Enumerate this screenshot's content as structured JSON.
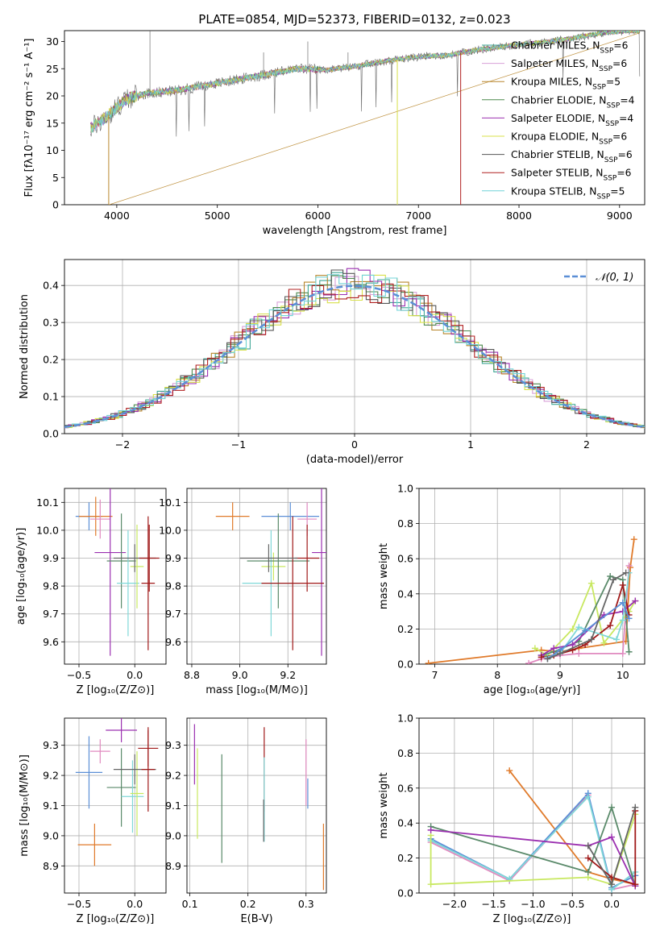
{
  "figure_title": "PLATE=0854, MJD=52373, FIBERID=0132, z=0.023",
  "colors": {
    "chabrier_miles": "#3fa796",
    "salpeter_miles": "#d8a0d8",
    "kroupa_miles": "#b8862b",
    "chabrier_elodie": "#4f8a4f",
    "salpeter_elodie": "#9b30b0",
    "kroupa_elodie": "#d8e04a",
    "chabrier_stelib": "#555555",
    "salpeter_stelib": "#b02020",
    "kroupa_stelib": "#70d4d8",
    "blue": "#5b8fd6",
    "orange": "#e07a2a",
    "pink": "#e08abf",
    "lime": "#c8e860",
    "green": "#5a8a6a",
    "purple": "#9b30b0",
    "darkred": "#a01a1a",
    "cyan": "#80d8d8",
    "gray": "#666666",
    "normal_curve": "#5b8fd6",
    "grid": "#b0b0b0"
  },
  "chart_data": [
    {
      "id": "spectrum",
      "type": "line",
      "title": "PLATE=0854, MJD=52373, FIBERID=0132, z=0.023",
      "xlabel": "wavelength [Angstrom, rest frame]",
      "ylabel": "Flux [fλ10⁻¹⁷ erg cm⁻² s⁻¹ A⁻¹]",
      "xlim": [
        3480,
        9250
      ],
      "ylim": [
        0,
        32
      ],
      "xticks": [
        4000,
        5000,
        6000,
        7000,
        8000,
        9000
      ],
      "yticks": [
        0,
        5,
        10,
        15,
        20,
        25,
        30
      ],
      "grid": false,
      "legend_position": "top-right",
      "continuum": [
        [
          3740,
          14
        ],
        [
          3950,
          17
        ],
        [
          4100,
          19.5
        ],
        [
          4300,
          20.5
        ],
        [
          4600,
          21
        ],
        [
          4900,
          22
        ],
        [
          5200,
          23
        ],
        [
          5500,
          24
        ],
        [
          5800,
          25
        ],
        [
          6100,
          24.8
        ],
        [
          6400,
          25.5
        ],
        [
          6700,
          26.5
        ],
        [
          7000,
          27.2
        ],
        [
          7300,
          27.5
        ],
        [
          7600,
          28.5
        ],
        [
          7900,
          29.2
        ],
        [
          8200,
          29.8
        ],
        [
          8500,
          30.5
        ],
        [
          8800,
          31.5
        ],
        [
          9100,
          32
        ]
      ],
      "legend": [
        {
          "label": "Chabrier MILES, N",
          "sub": "SSP",
          "eq": "=6",
          "ckey": "chabrier_miles"
        },
        {
          "label": "Salpeter MILES, N",
          "sub": "SSP",
          "eq": "=6",
          "ckey": "salpeter_miles"
        },
        {
          "label": "Kroupa MILES, N",
          "sub": "SSP",
          "eq": "=5",
          "ckey": "kroupa_miles"
        },
        {
          "label": "Chabrier ELODIE, N",
          "sub": "SSP",
          "eq": "=4",
          "ckey": "chabrier_elodie"
        },
        {
          "label": "Salpeter ELODIE, N",
          "sub": "SSP",
          "eq": "=4",
          "ckey": "salpeter_elodie"
        },
        {
          "label": "Kroupa ELODIE, N",
          "sub": "SSP",
          "eq": "=6",
          "ckey": "kroupa_elodie"
        },
        {
          "label": "Chabrier STELIB, N",
          "sub": "SSP",
          "eq": "=6",
          "ckey": "chabrier_stelib"
        },
        {
          "label": "Salpeter STELIB, N",
          "sub": "SSP",
          "eq": "=6",
          "ckey": "salpeter_stelib"
        },
        {
          "label": "Kroupa STELIB, N",
          "sub": "SSP",
          "eq": "=5",
          "ckey": "kroupa_stelib"
        }
      ]
    },
    {
      "id": "residuals",
      "type": "histogram",
      "xlabel": "(data-model)/error",
      "ylabel": "Normed distribution",
      "xlim": [
        -2.5,
        2.5
      ],
      "ylim": [
        0,
        0.47
      ],
      "xticks": [
        -2,
        -1,
        0,
        1,
        2
      ],
      "yticks": [
        0.0,
        0.1,
        0.2,
        0.3,
        0.4
      ],
      "grid": true,
      "legend_position": "top-right",
      "legend_label": "𝒩(0, 1)",
      "bin_width": 0.1,
      "normal": {
        "mu": 0,
        "sigma": 1
      }
    },
    {
      "id": "z_age",
      "type": "errorbar",
      "xlabel": "Z [log₁₀(Z/Z⊙)]",
      "ylabel": "age  [log₁₀(age/yr)]",
      "xlim": [
        -0.63,
        0.28
      ],
      "ylim": [
        9.52,
        10.15
      ],
      "xticks": [
        -0.5,
        0.0
      ],
      "yticks": [
        9.6,
        9.7,
        9.8,
        9.9,
        10.0,
        10.1
      ],
      "grid": true,
      "points": [
        {
          "x": -0.41,
          "y": 10.05,
          "xerr": 0.12,
          "yerr": 0.05,
          "ckey": "blue"
        },
        {
          "x": -0.35,
          "y": 10.05,
          "xerr": 0.15,
          "yerr": 0.07,
          "ckey": "orange"
        },
        {
          "x": -0.31,
          "y": 10.04,
          "xerr": 0.09,
          "yerr": 0.07,
          "ckey": "pink"
        },
        {
          "x": -0.22,
          "y": 9.92,
          "xerr": 0.14,
          "yerr": 0.37,
          "ckey": "purple"
        },
        {
          "x": -0.12,
          "y": 9.89,
          "xerr": 0.13,
          "yerr": 0.17,
          "ckey": "green"
        },
        {
          "x": -0.06,
          "y": 9.81,
          "xerr": 0.1,
          "yerr": 0.19,
          "ckey": "cyan"
        },
        {
          "x": 0.02,
          "y": 9.87,
          "xerr": 0.06,
          "yerr": 0.15,
          "ckey": "lime"
        },
        {
          "x": 0.0,
          "y": 9.9,
          "xerr": 0.19,
          "yerr": 0.05,
          "ckey": "gray"
        },
        {
          "x": 0.12,
          "y": 9.81,
          "xerr": 0.06,
          "yerr": 0.24,
          "ckey": "darkred"
        },
        {
          "x": 0.13,
          "y": 9.9,
          "xerr": 0.09,
          "yerr": 0.12,
          "ckey": "darkred"
        }
      ]
    },
    {
      "id": "mass_age",
      "type": "errorbar",
      "xlabel": "mass [log₁₀(M/M⊙)]",
      "ylabel": "",
      "xlim": [
        8.78,
        9.36
      ],
      "ylim": [
        9.52,
        10.15
      ],
      "xticks": [
        8.8,
        9.0,
        9.2
      ],
      "yticks": [
        9.6,
        9.7,
        9.8,
        9.9,
        10.0,
        10.1
      ],
      "grid": true,
      "points": [
        {
          "x": 8.97,
          "y": 10.05,
          "xerr": 0.07,
          "yerr": 0.05,
          "ckey": "orange"
        },
        {
          "x": 9.21,
          "y": 10.05,
          "xerr": 0.12,
          "yerr": 0.05,
          "ckey": "blue"
        },
        {
          "x": 9.28,
          "y": 10.04,
          "xerr": 0.04,
          "yerr": 0.06,
          "ckey": "pink"
        },
        {
          "x": 9.14,
          "y": 9.87,
          "xerr": 0.05,
          "yerr": 0.05,
          "ckey": "lime"
        },
        {
          "x": 9.13,
          "y": 9.81,
          "xerr": 0.12,
          "yerr": 0.19,
          "ckey": "cyan"
        },
        {
          "x": 9.16,
          "y": 9.89,
          "xerr": 0.13,
          "yerr": 0.17,
          "ckey": "green"
        },
        {
          "x": 9.34,
          "y": 9.92,
          "xerr": 0.04,
          "yerr": 0.37,
          "ckey": "purple"
        },
        {
          "x": 9.22,
          "y": 9.81,
          "xerr": 0.13,
          "yerr": 0.24,
          "ckey": "darkred"
        },
        {
          "x": 9.28,
          "y": 9.9,
          "xerr": 0.05,
          "yerr": 0.12,
          "ckey": "darkred"
        },
        {
          "x": 9.12,
          "y": 9.9,
          "xerr": 0.12,
          "yerr": 0.05,
          "ckey": "gray"
        }
      ]
    },
    {
      "id": "weights_age",
      "type": "line",
      "xlabel": "age  [log₁₀(age/yr)]",
      "ylabel": "mass weight",
      "xlim": [
        6.75,
        10.35
      ],
      "ylim": [
        0,
        1
      ],
      "xticks": [
        7,
        8,
        9,
        10
      ],
      "yticks": [
        0.0,
        0.2,
        0.4,
        0.6,
        0.8,
        1.0
      ],
      "grid": true,
      "series": [
        {
          "ckey": "orange",
          "x": [
            6.9,
            8.7,
            9.0,
            9.3,
            10.05,
            10.12,
            10.18
          ],
          "y": [
            0.005,
            0.08,
            0.07,
            0.09,
            0.13,
            0.55,
            0.71
          ]
        },
        {
          "ckey": "pink",
          "x": [
            8.5,
            8.7,
            9.0,
            9.3,
            10.0,
            10.1
          ],
          "y": [
            0.005,
            0.03,
            0.05,
            0.06,
            0.06,
            0.56
          ]
        },
        {
          "ckey": "lime",
          "x": [
            8.6,
            8.8,
            9.2,
            9.5,
            9.7,
            10.1,
            10.2
          ],
          "y": [
            0.09,
            0.05,
            0.2,
            0.46,
            0.12,
            0.3,
            0.36
          ]
        },
        {
          "ckey": "green",
          "x": [
            8.7,
            8.9,
            9.3,
            9.8,
            10.0,
            10.1
          ],
          "y": [
            0.05,
            0.07,
            0.13,
            0.5,
            0.48,
            0.07
          ]
        },
        {
          "ckey": "purple",
          "x": [
            8.7,
            8.9,
            9.2,
            9.7,
            10.0,
            10.2
          ],
          "y": [
            0.05,
            0.09,
            0.11,
            0.28,
            0.3,
            0.36
          ]
        },
        {
          "ckey": "darkred",
          "x": [
            8.7,
            8.9,
            9.2,
            9.4,
            9.8,
            10.0,
            10.1
          ],
          "y": [
            0.04,
            0.05,
            0.08,
            0.11,
            0.22,
            0.45,
            0.28
          ]
        },
        {
          "ckey": "cyan",
          "x": [
            8.8,
            9.0,
            9.3,
            9.9,
            10.0,
            10.1
          ],
          "y": [
            0.04,
            0.06,
            0.21,
            0.14,
            0.25,
            0.52
          ]
        },
        {
          "ckey": "blue",
          "x": [
            8.8,
            9.0,
            9.4,
            10.0,
            10.1
          ],
          "y": [
            0.03,
            0.08,
            0.19,
            0.35,
            0.26
          ]
        },
        {
          "ckey": "gray",
          "x": [
            8.8,
            9.0,
            9.5,
            9.85,
            10.05
          ],
          "y": [
            0.03,
            0.06,
            0.14,
            0.48,
            0.52
          ]
        }
      ]
    },
    {
      "id": "z_mass",
      "type": "errorbar",
      "xlabel": "Z [log₁₀(Z/Z⊙)]",
      "ylabel": "mass [log₁₀(M/M⊙)]",
      "xlim": [
        -0.63,
        0.28
      ],
      "ylim": [
        8.81,
        9.39
      ],
      "xticks": [
        -0.5,
        0.0
      ],
      "yticks": [
        8.9,
        9.0,
        9.1,
        9.2,
        9.3
      ],
      "grid": true,
      "points": [
        {
          "x": -0.41,
          "y": 9.21,
          "xerr": 0.12,
          "yerr": 0.12,
          "ckey": "blue"
        },
        {
          "x": -0.36,
          "y": 8.97,
          "xerr": 0.15,
          "yerr": 0.07,
          "ckey": "orange"
        },
        {
          "x": -0.31,
          "y": 9.28,
          "xerr": 0.09,
          "yerr": 0.04,
          "ckey": "pink"
        },
        {
          "x": -0.12,
          "y": 9.35,
          "xerr": 0.14,
          "yerr": 0.04,
          "ckey": "purple"
        },
        {
          "x": -0.12,
          "y": 9.16,
          "xerr": 0.13,
          "yerr": 0.13,
          "ckey": "green"
        },
        {
          "x": -0.02,
          "y": 9.13,
          "xerr": 0.1,
          "yerr": 0.12,
          "ckey": "cyan"
        },
        {
          "x": 0.02,
          "y": 9.14,
          "xerr": 0.06,
          "yerr": 0.14,
          "ckey": "lime"
        },
        {
          "x": 0.0,
          "y": 9.22,
          "xerr": 0.19,
          "yerr": 0.05,
          "ckey": "gray"
        },
        {
          "x": 0.12,
          "y": 9.22,
          "xerr": 0.06,
          "yerr": 0.14,
          "ckey": "darkred"
        },
        {
          "x": 0.12,
          "y": 9.29,
          "xerr": 0.09,
          "yerr": 0.06,
          "ckey": "darkred"
        }
      ]
    },
    {
      "id": "ebv_mass",
      "type": "errorbar",
      "xlabel": "E(B-V)",
      "ylabel": "",
      "xlim": [
        0.095,
        0.335
      ],
      "ylim": [
        8.81,
        9.39
      ],
      "xticks": [
        0.1,
        0.2,
        0.3
      ],
      "yticks": [
        8.9,
        9.0,
        9.1,
        9.2,
        9.3
      ],
      "grid": true,
      "points": [
        {
          "x": 0.108,
          "y": 9.27,
          "xerr": 0,
          "yerr": 0.1,
          "ckey": "purple"
        },
        {
          "x": 0.113,
          "y": 9.14,
          "xerr": 0,
          "yerr": 0.15,
          "ckey": "lime"
        },
        {
          "x": 0.155,
          "y": 9.09,
          "xerr": 0,
          "yerr": 0.18,
          "ckey": "green"
        },
        {
          "x": 0.228,
          "y": 9.22,
          "xerr": 0,
          "yerr": 0.14,
          "ckey": "darkred"
        },
        {
          "x": 0.228,
          "y": 9.12,
          "xerr": 0,
          "yerr": 0.14,
          "ckey": "cyan"
        },
        {
          "x": 0.227,
          "y": 9.05,
          "xerr": 0,
          "yerr": 0.07,
          "ckey": "gray"
        },
        {
          "x": 0.3,
          "y": 9.21,
          "xerr": 0,
          "yerr": 0.11,
          "ckey": "pink"
        },
        {
          "x": 0.303,
          "y": 9.14,
          "xerr": 0,
          "yerr": 0.05,
          "ckey": "blue"
        },
        {
          "x": 0.33,
          "y": 8.93,
          "xerr": 0,
          "yerr": 0.11,
          "ckey": "orange"
        }
      ]
    },
    {
      "id": "weights_z",
      "type": "line",
      "xlabel": "Z [log₁₀(Z/Z⊙)]",
      "ylabel": "mass weight",
      "xlim": [
        -2.45,
        0.42
      ],
      "ylim": [
        0,
        1
      ],
      "xticks": [
        -2.0,
        -1.5,
        -1.0,
        -0.5,
        0.0
      ],
      "yticks": [
        0.0,
        0.2,
        0.4,
        0.6,
        0.8,
        1.0
      ],
      "grid": true,
      "series": [
        {
          "ckey": "orange",
          "x": [
            -1.3,
            -0.3,
            0.0,
            0.3
          ],
          "y": [
            0.7,
            0.12,
            0.08,
            0.05
          ]
        },
        {
          "ckey": "pink",
          "x": [
            -2.3,
            -1.3,
            -0.3,
            0.0,
            0.3
          ],
          "y": [
            0.29,
            0.07,
            0.56,
            0.02,
            0.05
          ]
        },
        {
          "ckey": "blue",
          "x": [
            -2.3,
            -1.3,
            -0.3,
            0.0,
            0.3
          ],
          "y": [
            0.31,
            0.08,
            0.57,
            0.03,
            0.1
          ]
        },
        {
          "ckey": "cyan",
          "x": [
            -2.3,
            -1.3,
            -0.3,
            0.0,
            0.3
          ],
          "y": [
            0.3,
            0.08,
            0.55,
            0.02,
            0.12
          ]
        },
        {
          "ckey": "lime",
          "x": [
            -2.3,
            -2.3,
            -0.3,
            0.0,
            0.3
          ],
          "y": [
            0.33,
            0.05,
            0.09,
            0.05,
            0.45
          ]
        },
        {
          "ckey": "green",
          "x": [
            -2.3,
            -0.3,
            0.0,
            0.3
          ],
          "y": [
            0.38,
            0.12,
            0.49,
            0.04
          ]
        },
        {
          "ckey": "purple",
          "x": [
            -2.3,
            -0.3,
            0.0,
            0.3
          ],
          "y": [
            0.36,
            0.27,
            0.32,
            0.04
          ]
        },
        {
          "ckey": "darkred",
          "x": [
            -0.3,
            0.0,
            0.3,
            0.3
          ],
          "y": [
            0.2,
            0.09,
            0.05,
            0.47
          ]
        },
        {
          "ckey": "gray",
          "x": [
            -0.3,
            0.0,
            0.3
          ],
          "y": [
            0.27,
            0.05,
            0.49
          ]
        }
      ]
    }
  ]
}
